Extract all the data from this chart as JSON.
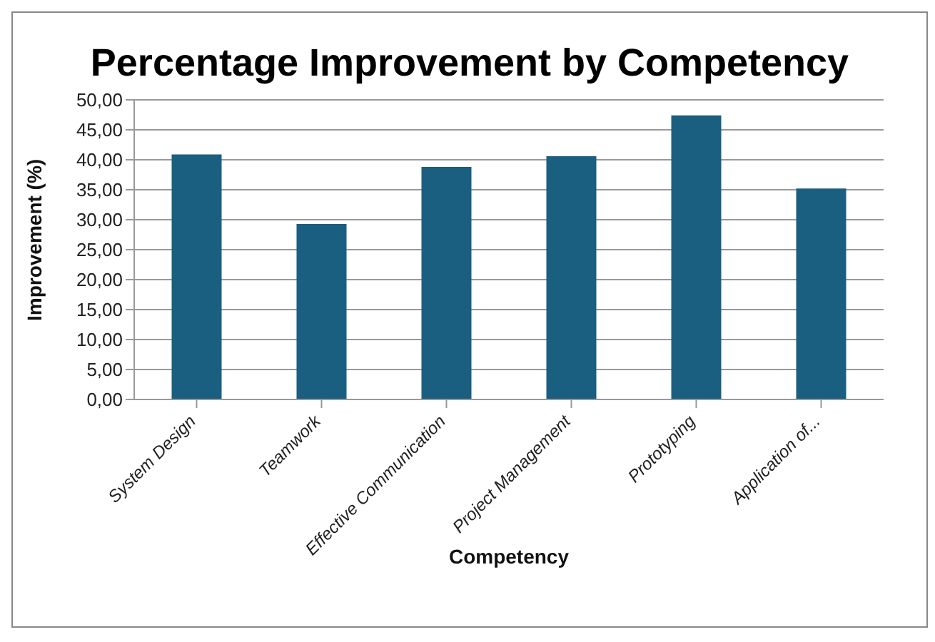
{
  "chart_data": {
    "type": "bar",
    "title": "Percentage Improvement by Competency",
    "xlabel": "Competency",
    "ylabel": "Improvement (%)",
    "categories": [
      "System Design",
      "Teamwork",
      "Effective Communication",
      "Project Management",
      "Prototyping",
      "Application of..."
    ],
    "values": [
      40.9,
      29.3,
      38.8,
      40.6,
      47.4,
      35.2
    ],
    "color": "#1a5e80",
    "ylim": [
      0,
      50
    ],
    "yticks": [
      {
        "value": 0,
        "label": "0,00"
      },
      {
        "value": 5,
        "label": "5,00"
      },
      {
        "value": 10,
        "label": "10,00"
      },
      {
        "value": 15,
        "label": "15,00"
      },
      {
        "value": 20,
        "label": "20,00"
      },
      {
        "value": 25,
        "label": "25,00"
      },
      {
        "value": 30,
        "label": "30,00"
      },
      {
        "value": 35,
        "label": "35,00"
      },
      {
        "value": 40,
        "label": "40,00"
      },
      {
        "value": 45,
        "label": "45,00"
      },
      {
        "value": 50,
        "label": "50,00"
      }
    ],
    "grid": "y",
    "legend": false
  }
}
